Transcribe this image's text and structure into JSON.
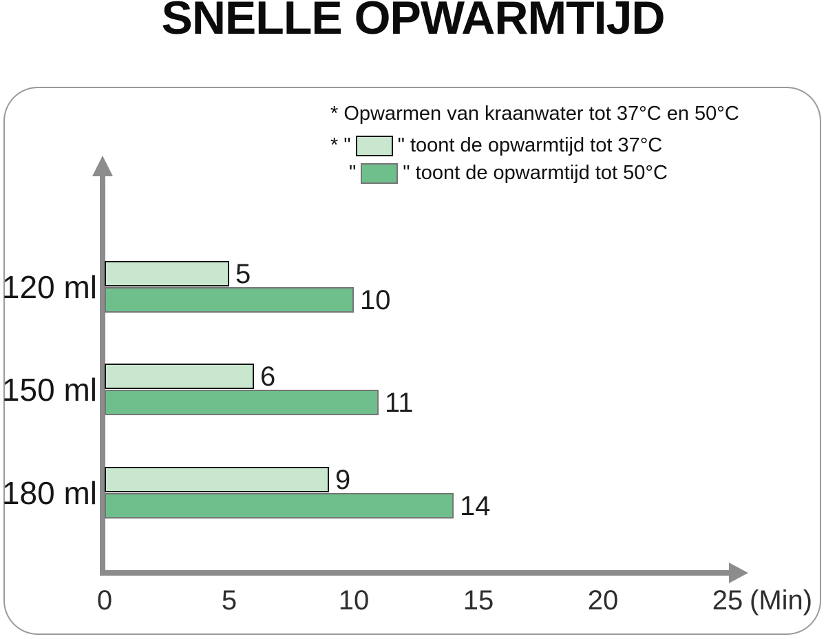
{
  "legend": {
    "note": "* Opwarmen van kraanwater tot 37°C en 50°C",
    "item_37": {
      "prefix": "* \"",
      "suffix": "\" toont de opwarmtijd tot 37°C"
    },
    "item_50": {
      "prefix": "\"",
      "suffix": "\" toont de opwarmtijd tot 50°C"
    }
  },
  "chart_data": {
    "type": "bar",
    "orientation": "horizontal",
    "title": "SNELLE OPWARMTIJD",
    "categories": [
      "120 ml",
      "150 ml",
      "180 ml"
    ],
    "series": [
      {
        "name": "opwarmtijd tot 37°C",
        "values": [
          5,
          6,
          9
        ],
        "fill": "#c8e7ce",
        "border": "#141414"
      },
      {
        "name": "opwarmtijd tot 50°C",
        "values": [
          10,
          11,
          14
        ],
        "fill": "#6fbf8d",
        "border": "#757575"
      }
    ],
    "x_ticks": [
      "0",
      "5",
      "10",
      "15",
      "20",
      "25"
    ],
    "x_tick_values": [
      0,
      5,
      10,
      15,
      20,
      25
    ],
    "xlabel": "(Min)",
    "xlim": [
      0,
      25
    ],
    "grid": false,
    "value_labels": true,
    "legend_position": "top-right",
    "colors": {
      "axis": "#8c8c8c",
      "panel_border": "#9a9a9a",
      "text": "#1c1c1c"
    }
  }
}
